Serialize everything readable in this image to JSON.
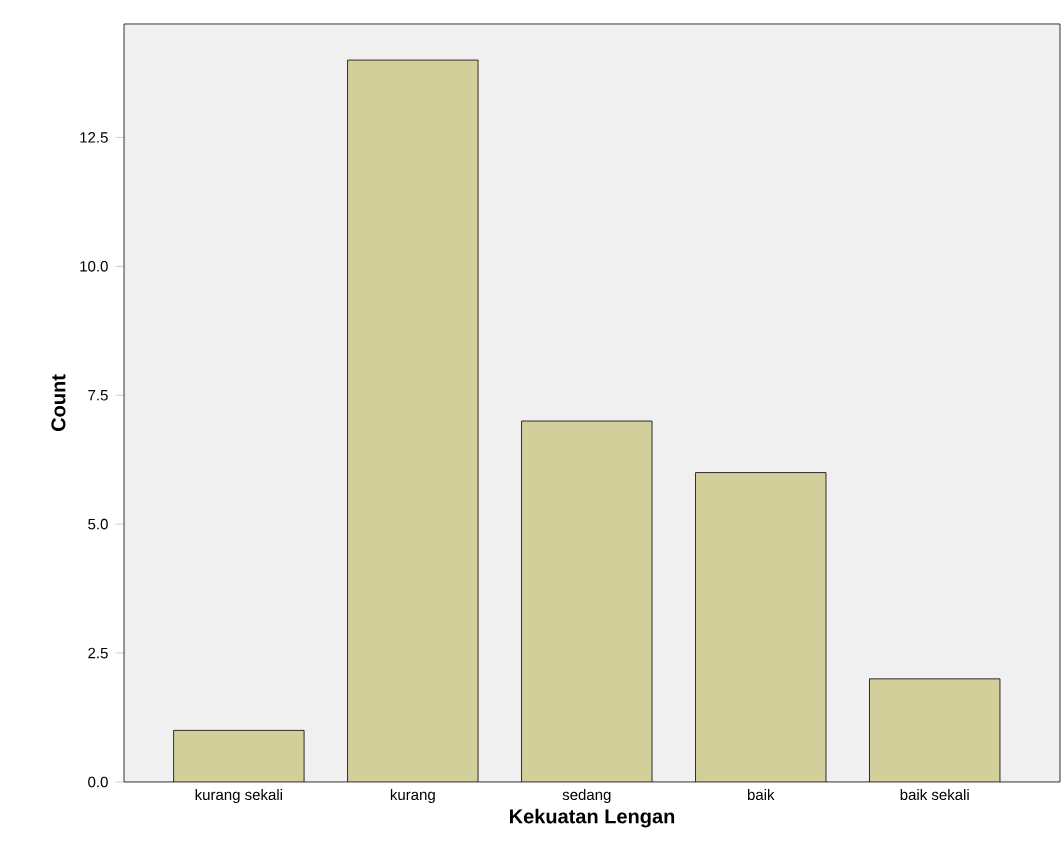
{
  "chart_data": {
    "type": "bar",
    "xlabel": "Kekuatan Lengan",
    "ylabel": "Count",
    "categories": [
      "kurang sekali",
      "kurang",
      "sedang",
      "baik",
      "baik sekali"
    ],
    "values": [
      1,
      14,
      7,
      6,
      2
    ],
    "color": "#d3cf9b",
    "ylim": [
      0,
      14.7
    ],
    "yticks": [
      {
        "value": 0,
        "label": "0.0"
      },
      {
        "value": 2.5,
        "label": "2.5"
      },
      {
        "value": 5,
        "label": "5.0"
      },
      {
        "value": 7.5,
        "label": "7.5"
      },
      {
        "value": 10,
        "label": "10.0"
      },
      {
        "value": 12.5,
        "label": "12.5"
      }
    ],
    "grid": false
  }
}
